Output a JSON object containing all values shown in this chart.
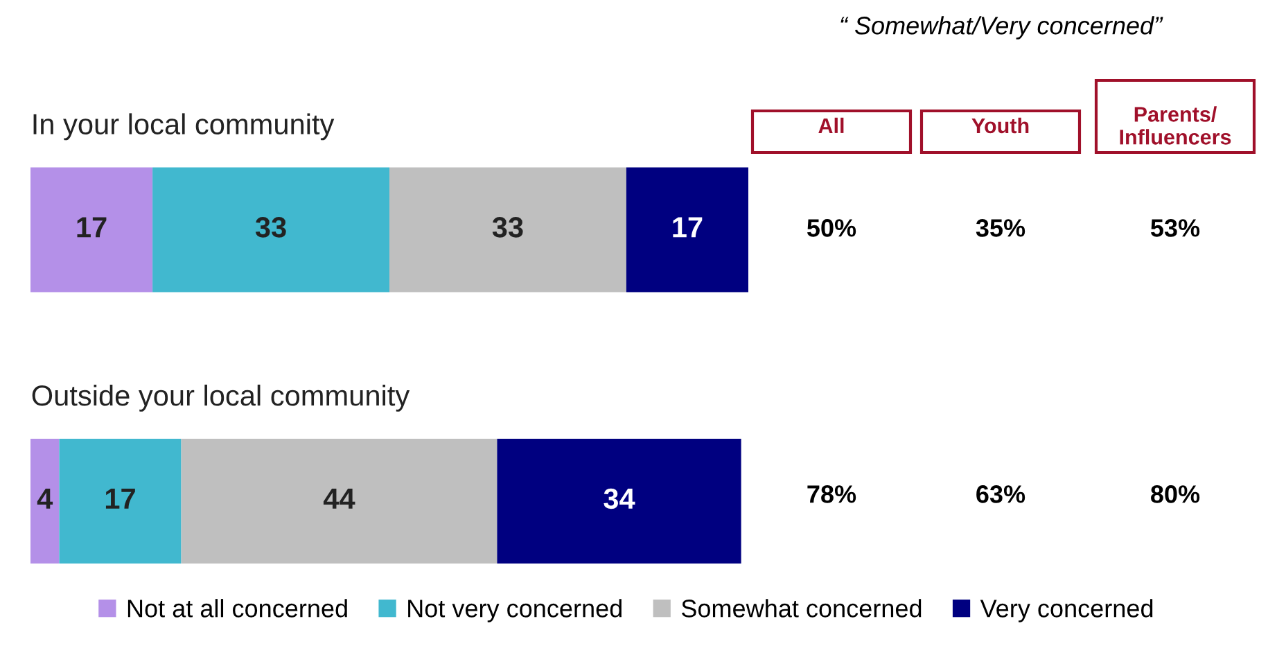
{
  "chart_data": {
    "type": "bar",
    "orientation": "horizontal",
    "stacked": true,
    "data_labels": true,
    "legend": "bottom",
    "categories": [
      "In your local community",
      "Outside your local community"
    ],
    "series": [
      {
        "name": "Not at all concerned",
        "color": "#b490e8",
        "values": [
          17,
          4
        ]
      },
      {
        "name": "Not very concerned",
        "color": "#41b8cf",
        "values": [
          33,
          17
        ]
      },
      {
        "name": "Somewhat concerned",
        "color": "#bfbfbf",
        "values": [
          33,
          44
        ]
      },
      {
        "name": "Very concerned",
        "color": "#000080",
        "values": [
          17,
          34
        ]
      }
    ],
    "annotations": [
      "“ Somewhat/Very concerned”",
      "All",
      "Youth",
      "Parents/\nInfluencers",
      "50%",
      "35%",
      "53%",
      "78%",
      "63%",
      "80%"
    ]
  }
}
